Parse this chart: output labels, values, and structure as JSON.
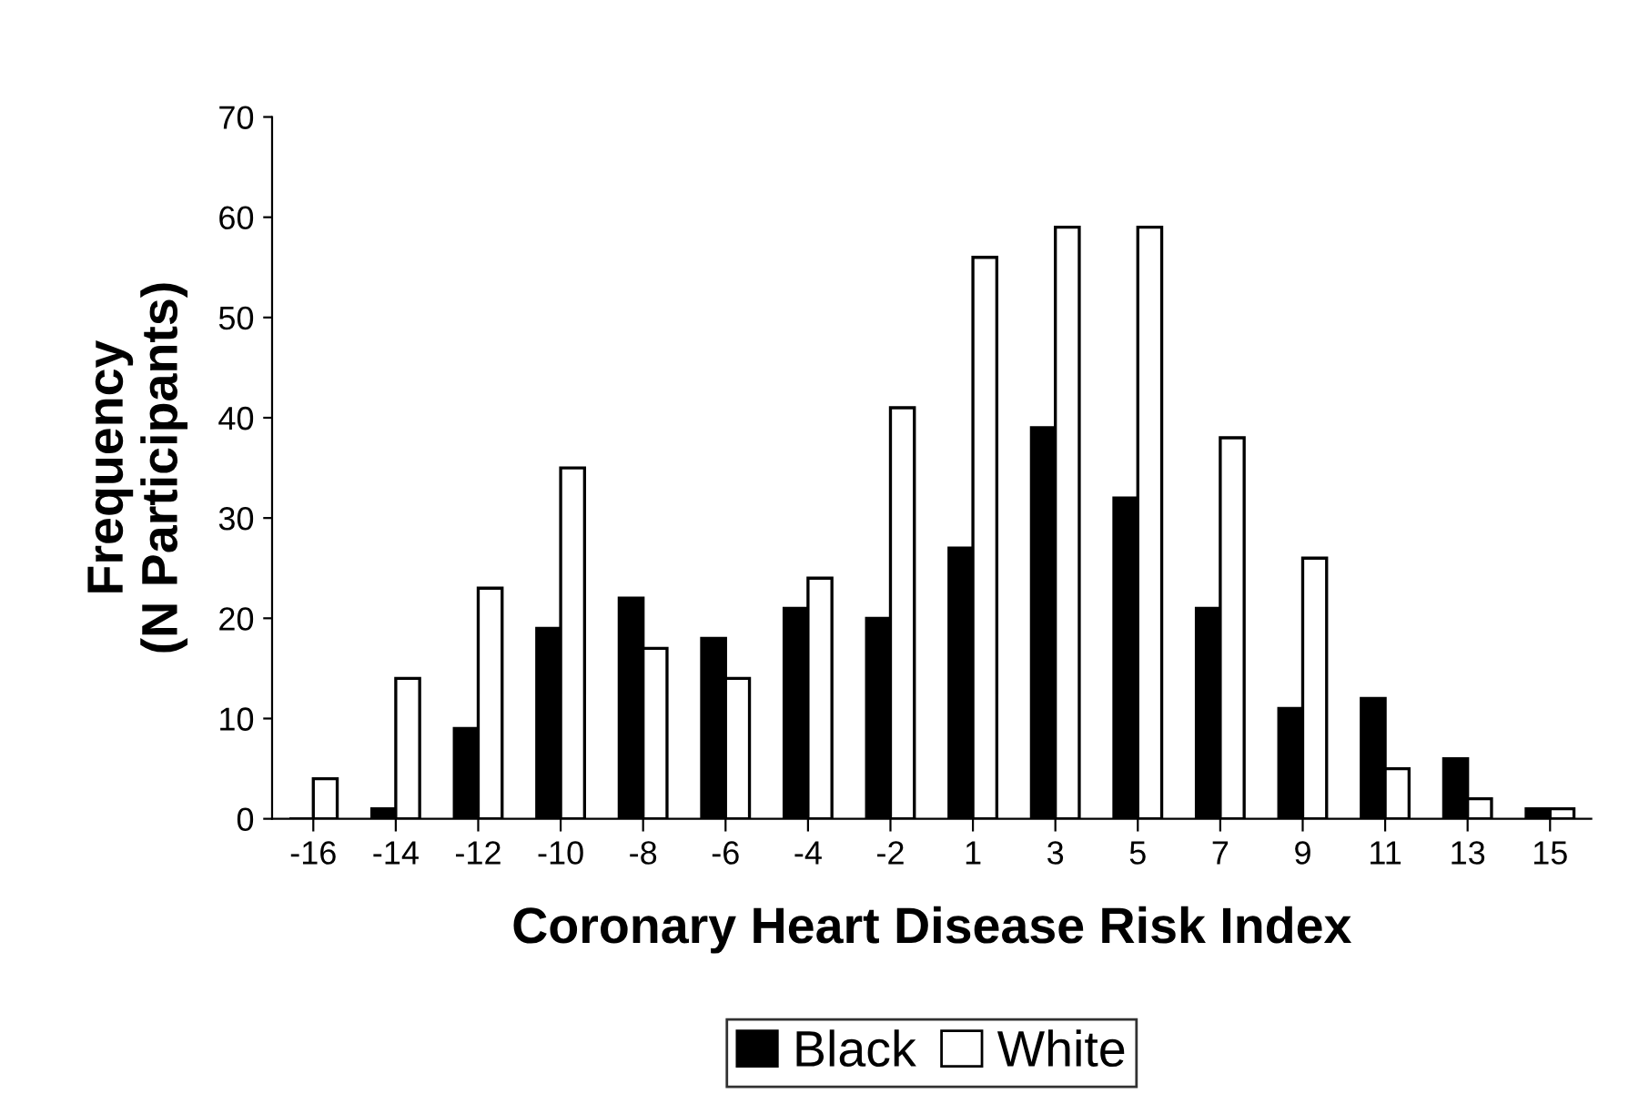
{
  "chart_data": {
    "type": "bar",
    "xlabel": "Coronary Heart Disease Risk Index",
    "ylabel": "Frequency\n(N Participants)",
    "categories": [
      "-16",
      "-14",
      "-12",
      "-10",
      "-8",
      "-6",
      "-4",
      "-2",
      "1",
      "3",
      "5",
      "7",
      "9",
      "11",
      "13",
      "15"
    ],
    "series": [
      {
        "name": "Black",
        "color": "#000000",
        "values": [
          0,
          1,
          9,
          19,
          22,
          18,
          21,
          20,
          27,
          39,
          32,
          21,
          11,
          12,
          6,
          1
        ]
      },
      {
        "name": "White",
        "color": "#ffffff",
        "values": [
          4,
          14,
          23,
          35,
          17,
          14,
          24,
          41,
          56,
          59,
          59,
          38,
          26,
          5,
          2,
          1
        ]
      }
    ],
    "ylim": [
      0,
      70
    ],
    "yticks": [
      0,
      10,
      20,
      30,
      40,
      50,
      60,
      70
    ],
    "grid": false,
    "legend": "bottom"
  }
}
